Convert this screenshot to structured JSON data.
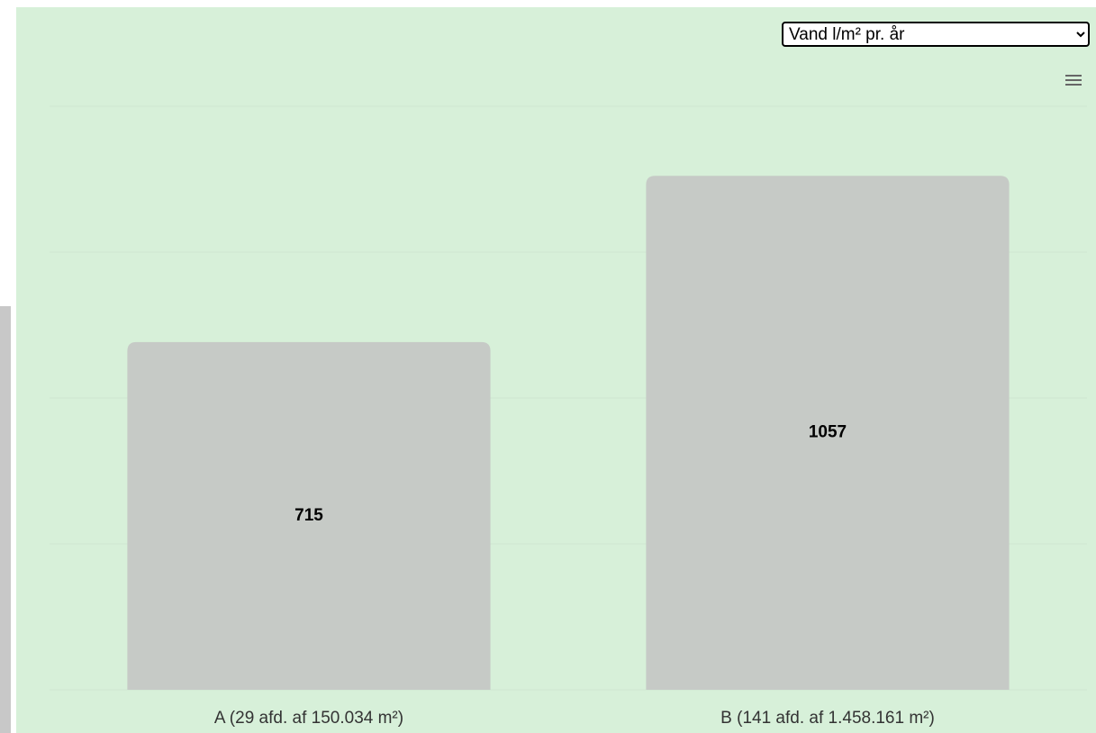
{
  "select": {
    "selected": "Vand l/m² pr. år"
  },
  "chart_data": {
    "type": "bar",
    "categories": [
      "A (29 afd. af 150.034 m²)",
      "B (141 afd. af 1.458.161 m²)"
    ],
    "values": [
      715,
      1057
    ],
    "color": "#c6cac6",
    "ylim": [
      0,
      1200
    ],
    "yticks": [
      0,
      300,
      600,
      900,
      1200
    ],
    "grid": true
  }
}
